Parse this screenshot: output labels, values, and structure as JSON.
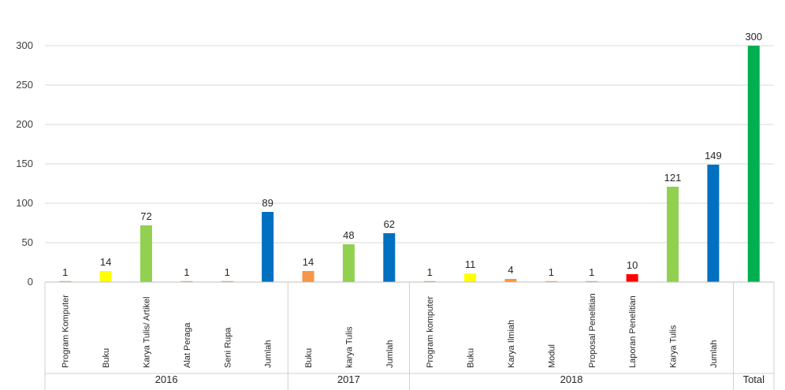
{
  "chart_data": {
    "type": "bar",
    "title": "",
    "xlabel": "",
    "ylabel": "",
    "ylim": [
      0,
      300
    ],
    "yticks": [
      0,
      50,
      100,
      150,
      200,
      250,
      300
    ],
    "grid": true,
    "legend": "none",
    "groups": [
      {
        "name": "2016",
        "bars": [
          {
            "label": "Program Komputer",
            "value": 1,
            "color": "#F79646"
          },
          {
            "label": "Buku",
            "value": 14,
            "color": "#FFFF00"
          },
          {
            "label": "Karya Tulis/ Artikel",
            "value": 72,
            "color": "#92D050"
          },
          {
            "label": "Alat Peraga",
            "value": 1,
            "color": "#F79646"
          },
          {
            "label": "Seni Rupa",
            "value": 1,
            "color": "#F79646"
          },
          {
            "label": "Jumlah",
            "value": 89,
            "color": "#0070C0"
          }
        ]
      },
      {
        "name": "2017",
        "bars": [
          {
            "label": "Buku",
            "value": 14,
            "color": "#F79646"
          },
          {
            "label": "karya Tulis",
            "value": 48,
            "color": "#92D050"
          },
          {
            "label": "Jumlah",
            "value": 62,
            "color": "#0070C0"
          }
        ]
      },
      {
        "name": "2018",
        "bars": [
          {
            "label": "Program komputer",
            "value": 1,
            "color": "#F79646"
          },
          {
            "label": "Buku",
            "value": 11,
            "color": "#FFFF00"
          },
          {
            "label": "Karya Ilmiah",
            "value": 4,
            "color": "#F79646"
          },
          {
            "label": "Modul",
            "value": 1,
            "color": "#F79646"
          },
          {
            "label": "Proposal Penelitian",
            "value": 1,
            "color": "#F79646"
          },
          {
            "label": "Laporan Penelitian",
            "value": 10,
            "color": "#FF0000"
          },
          {
            "label": "Karya Tulis",
            "value": 121,
            "color": "#92D050"
          },
          {
            "label": "Jumlah",
            "value": 149,
            "color": "#0070C0"
          }
        ]
      },
      {
        "name": "Total",
        "bars": [
          {
            "label": "",
            "value": 300,
            "color": "#00B050"
          }
        ]
      }
    ]
  }
}
